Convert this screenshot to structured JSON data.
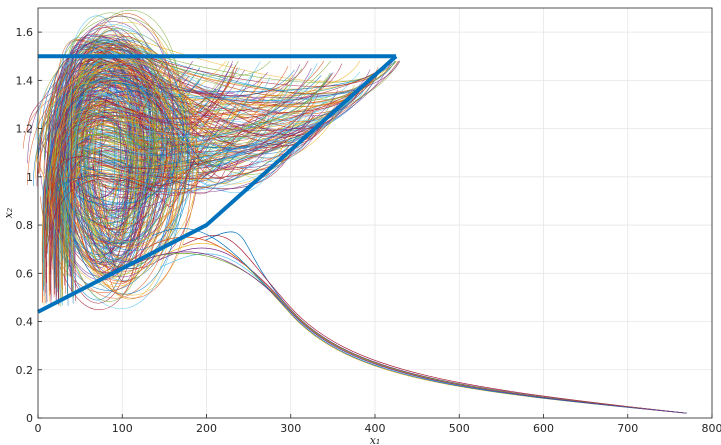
{
  "chart_data": {
    "type": "line",
    "title": "",
    "xlabel": "x₁",
    "ylabel": "x₂",
    "xlim": [
      0,
      800
    ],
    "ylim": [
      0,
      1.7
    ],
    "grid": true,
    "legend": "none",
    "x_ticks": [
      "0",
      "100",
      "200",
      "300",
      "400",
      "500",
      "600",
      "700",
      "800"
    ],
    "y_ticks": [
      "0",
      "0.2",
      "0.4",
      "0.6",
      "0.8",
      "1",
      "1.2",
      "1.4",
      "1.6"
    ],
    "boundary": {
      "color": "#0072BD",
      "top_edge": [
        [
          0,
          1.5
        ],
        [
          425,
          1.5
        ]
      ],
      "lower_edge": [
        [
          0,
          0.44
        ],
        [
          200,
          0.8
        ],
        [
          425,
          1.5
        ]
      ]
    },
    "escaping_trajectories_end": [
      770,
      0.02
    ],
    "trajectory_palette": [
      "#0072BD",
      "#D95319",
      "#EDB120",
      "#7E2F8E",
      "#77AC30",
      "#4DBEEE",
      "#A2142F"
    ]
  }
}
